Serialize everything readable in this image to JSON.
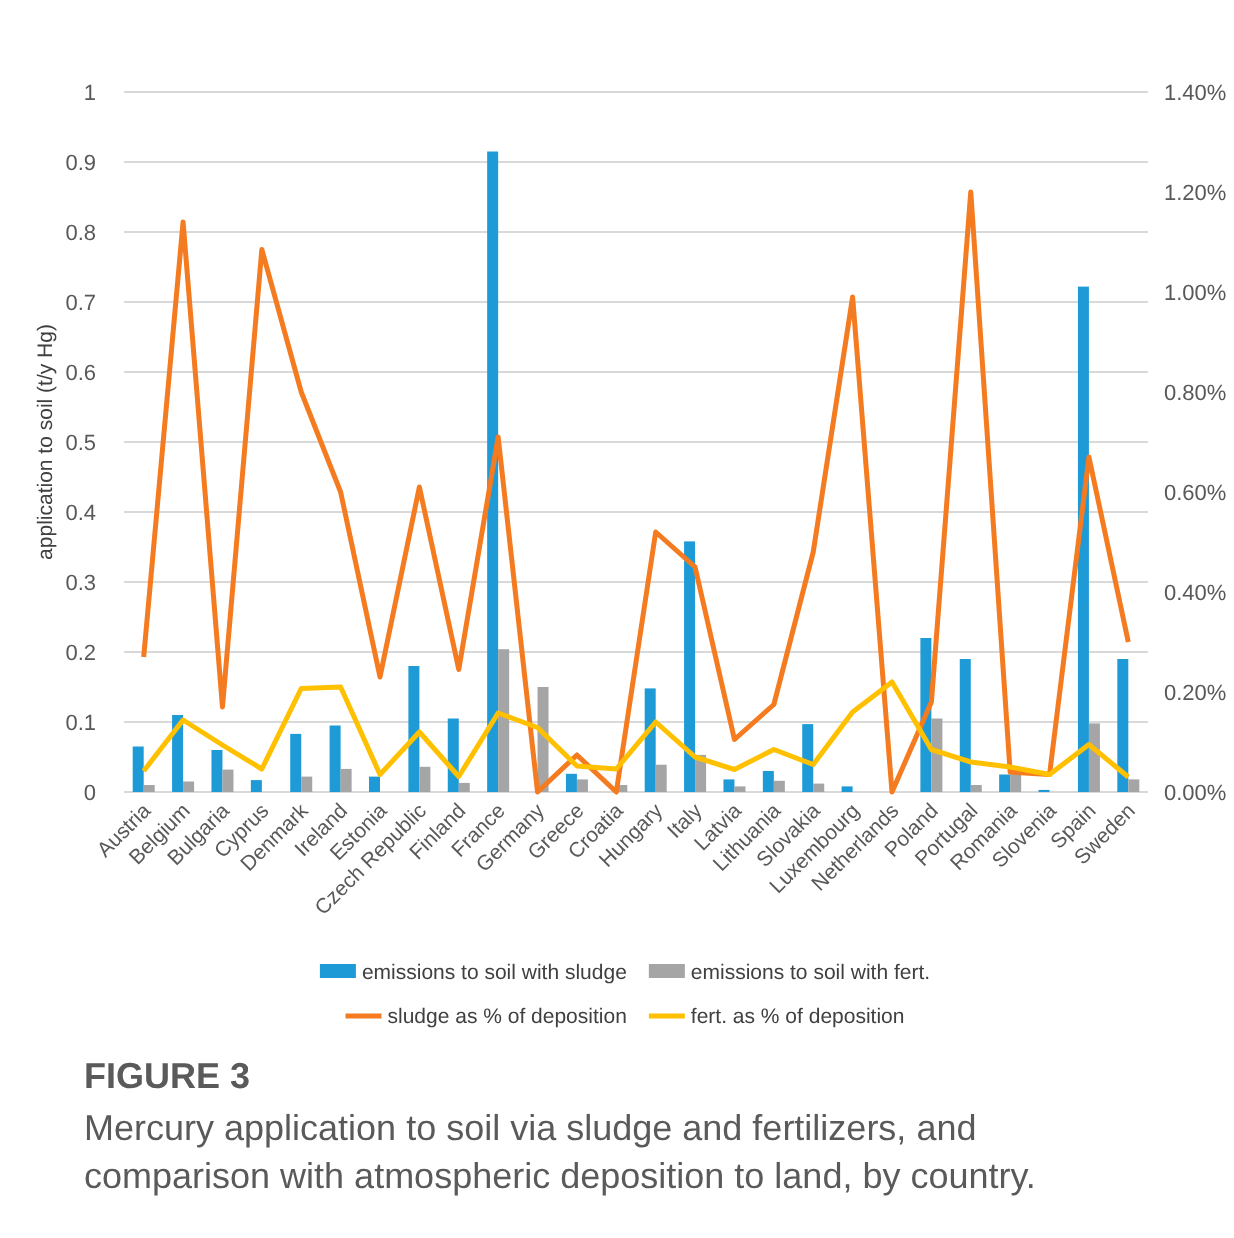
{
  "chart_data": {
    "type": "bar",
    "title": "FIGURE 3",
    "subtitle": "Mercury application to soil via sludge and fertilizers, and comparison with atmospheric deposition to land, by country.",
    "ylabel": "application to soil (t/y Hg)",
    "categories": [
      "Austria",
      "Belgium",
      "Bulgaria",
      "Cyprus",
      "Denmark",
      "Ireland",
      "Estonia",
      "Czech Republic",
      "Finland",
      "France",
      "Germany",
      "Greece",
      "Croatia",
      "Hungary",
      "Italy",
      "Latvia",
      "Lithuania",
      "Slovakia",
      "Luxembourg",
      "Netherlands",
      "Poland",
      "Portugal",
      "Romania",
      "Slovenia",
      "Spain",
      "Sweden"
    ],
    "series": [
      {
        "name": "emissions to soil with sludge",
        "color": "#1e9bd7",
        "values": [
          0.065,
          0.11,
          0.06,
          0.017,
          0.083,
          0.095,
          0.022,
          0.18,
          0.105,
          0.915,
          0,
          0.026,
          0,
          0.148,
          0.358,
          0.018,
          0.03,
          0.097,
          0.008,
          0,
          0.22,
          0.19,
          0.025,
          0.003,
          0.722,
          0.19
        ]
      },
      {
        "name": "emissions to soil with fert.",
        "color": "#a5a5a5",
        "values": [
          0.01,
          0.015,
          0.032,
          0,
          0.022,
          0.033,
          null,
          0.036,
          0.013,
          0.204,
          0.15,
          0.018,
          0.01,
          0.039,
          0.053,
          0.008,
          0.016,
          0.012,
          0,
          null,
          0.105,
          0.01,
          0.03,
          null,
          0.098,
          0.018
        ]
      },
      {
        "name": "sludge as % of deposition",
        "type": "line",
        "axis": "y2",
        "color": "#f47b20",
        "values": [
          0.27,
          1.14,
          0.17,
          1.085,
          0.8,
          0.6,
          0.23,
          0.61,
          0.245,
          0.71,
          0,
          0.074,
          0,
          0.52,
          0.45,
          0.105,
          0.175,
          0.48,
          0.99,
          0,
          0.18,
          1.2,
          0.04,
          0.035,
          0.67,
          0.3
        ]
      },
      {
        "name": "fert. as % of deposition",
        "type": "line",
        "axis": "y2",
        "color": "#ffc000",
        "values": [
          0.042,
          0.144,
          0.094,
          0.046,
          0.207,
          0.21,
          0.035,
          0.12,
          0.031,
          0.158,
          0.129,
          0.052,
          0.046,
          0.14,
          0.07,
          0.045,
          0.085,
          0.055,
          0.16,
          0.22,
          0.085,
          0.06,
          0.05,
          0.035,
          0.095,
          0.03
        ]
      }
    ],
    "ylim": [
      0,
      1
    ],
    "yticks": [
      0,
      0.1,
      0.2,
      0.3,
      0.4,
      0.5,
      0.6,
      0.7,
      0.8,
      0.9,
      1
    ],
    "y2lim": [
      0,
      1.4
    ],
    "y2ticks": [
      {
        "value": 0,
        "label": "0.00%"
      },
      {
        "value": 0.2,
        "label": "0.20%"
      },
      {
        "value": 0.4,
        "label": "0.40%"
      },
      {
        "value": 0.6,
        "label": "0.60%"
      },
      {
        "value": 0.8,
        "label": "0.80%"
      },
      {
        "value": 1,
        "label": "1.00%"
      },
      {
        "value": 1.2,
        "label": "1.20%"
      },
      {
        "value": 1.4,
        "label": "1.40%"
      }
    ],
    "grid": "y",
    "legend": "bottom",
    "marker": "none",
    "line_style": "solid"
  }
}
